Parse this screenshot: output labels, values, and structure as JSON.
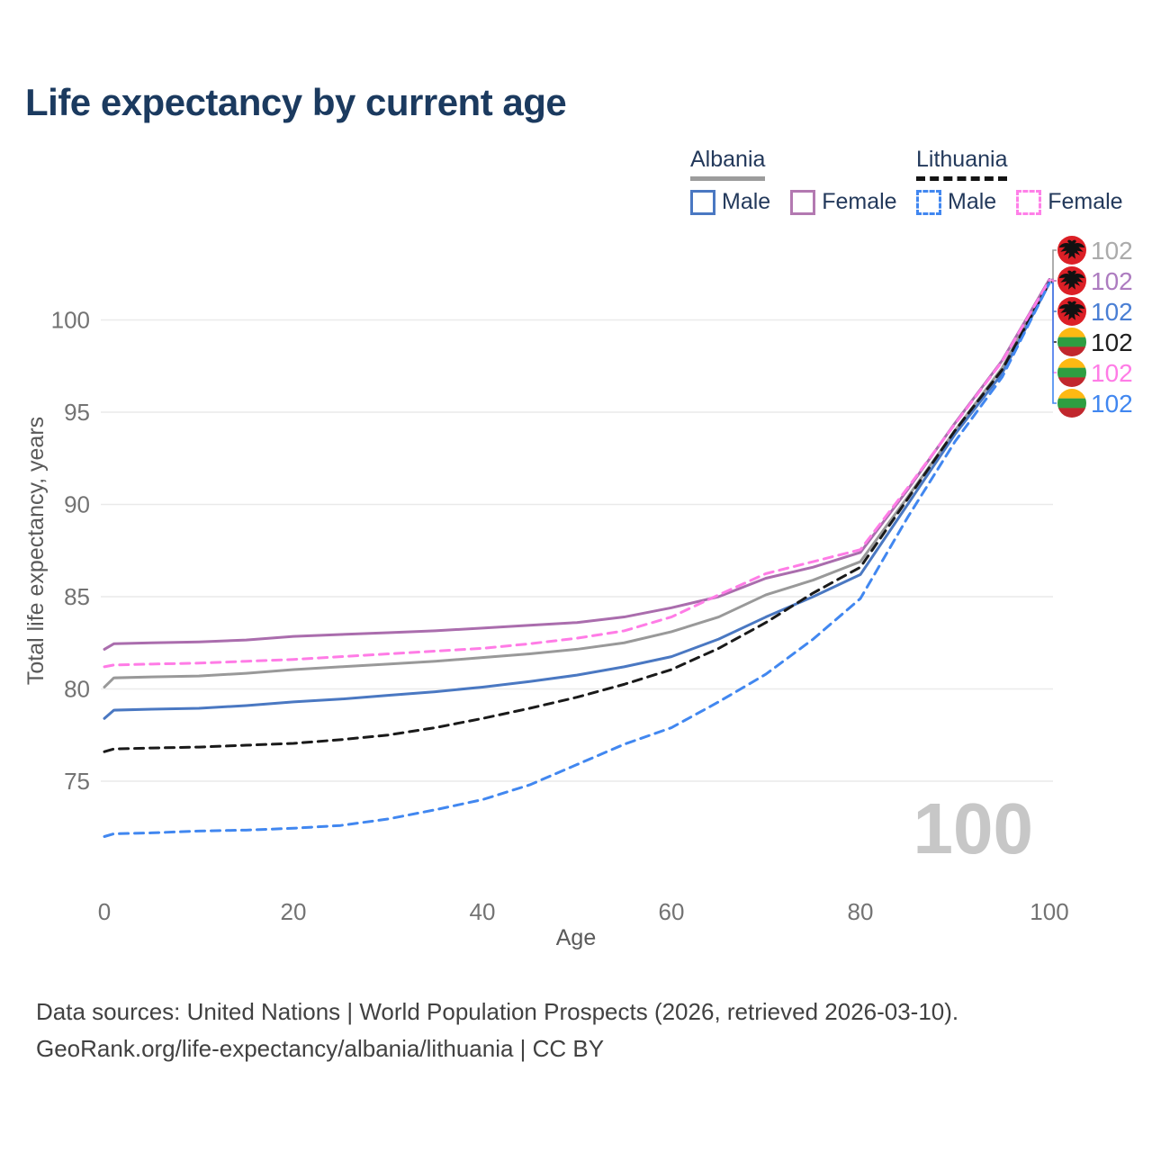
{
  "title": "Life expectancy by current age",
  "legend": {
    "groups": [
      {
        "label": "Albania",
        "underline_color": "#9c9c9c",
        "underline_dashed": false,
        "items": [
          {
            "label": "Male",
            "color": "#4a78c2",
            "dashed": false
          },
          {
            "label": "Female",
            "color": "#b379b1",
            "dashed": false
          }
        ]
      },
      {
        "label": "Lithuania",
        "underline_color": "#141414",
        "underline_dashed": true,
        "items": [
          {
            "label": "Male",
            "color": "#4187f0",
            "dashed": true
          },
          {
            "label": "Female",
            "color": "#ff80e8",
            "dashed": true
          }
        ]
      }
    ]
  },
  "watermark": "100",
  "footer": {
    "line1": "Data sources: United Nations | World Population Prospects (2026, retrieved 2026-03-10).",
    "line2": "GeoRank.org/life-expectancy/albania/lithuania | CC BY"
  },
  "chart_data": {
    "type": "line",
    "title": "Life expectancy by current age",
    "xlabel": "Age",
    "ylabel": "Total life expectancy, years",
    "x_ticks": [
      0,
      20,
      40,
      60,
      80,
      100
    ],
    "y_ticks": [
      75,
      80,
      85,
      90,
      95,
      100
    ],
    "xlim": [
      0,
      100
    ],
    "ylim": [
      72,
      103
    ],
    "grid": "horizontal",
    "legend_position": "top-right",
    "current_age_watermark": "100",
    "x": [
      0,
      1,
      5,
      10,
      15,
      20,
      25,
      30,
      35,
      40,
      45,
      50,
      55,
      60,
      65,
      70,
      75,
      80,
      85,
      90,
      95,
      100
    ],
    "series": [
      {
        "name": "Albania",
        "group": "total",
        "color": "#999999",
        "label_color": "#ababab",
        "dashed": false,
        "flag": "albania",
        "end_label": "102",
        "values": [
          80.1,
          80.6,
          80.65,
          80.7,
          80.85,
          81.05,
          81.2,
          81.35,
          81.5,
          81.7,
          81.9,
          82.15,
          82.5,
          83.1,
          83.9,
          85.1,
          85.9,
          86.9,
          90.4,
          94.0,
          97.4,
          102.1
        ]
      },
      {
        "name": "Albania Female",
        "group": "female",
        "color": "#aa6dad",
        "label_color": "#ad7cc0",
        "dashed": false,
        "flag": "albania",
        "end_label": "102",
        "values": [
          82.15,
          82.45,
          82.5,
          82.55,
          82.65,
          82.85,
          82.95,
          83.05,
          83.15,
          83.3,
          83.45,
          83.6,
          83.9,
          84.4,
          85.0,
          86.0,
          86.6,
          87.4,
          90.8,
          94.4,
          97.8,
          102.2
        ]
      },
      {
        "name": "Albania Male",
        "group": "male",
        "color": "#4a78c2",
        "label_color": "#4a7fd4",
        "dashed": false,
        "flag": "albania",
        "end_label": "102",
        "values": [
          78.4,
          78.85,
          78.9,
          78.95,
          79.1,
          79.3,
          79.45,
          79.65,
          79.85,
          80.1,
          80.4,
          80.75,
          81.2,
          81.75,
          82.7,
          83.9,
          85.0,
          86.2,
          90.0,
          93.8,
          97.1,
          102.0
        ]
      },
      {
        "name": "Lithuania",
        "group": "total",
        "color": "#1a1a1a",
        "label_color": "#1f1f1f",
        "dashed": true,
        "flag": "lithuania",
        "end_label": "102",
        "values": [
          76.6,
          76.75,
          76.8,
          76.85,
          76.95,
          77.05,
          77.25,
          77.5,
          77.9,
          78.4,
          78.95,
          79.55,
          80.25,
          81.05,
          82.2,
          83.6,
          85.2,
          86.6,
          90.3,
          94.0,
          97.3,
          102.05
        ]
      },
      {
        "name": "Lithuania Female",
        "group": "female",
        "color": "#ff7ce6",
        "label_color": "#ff7ce6",
        "dashed": true,
        "flag": "lithuania",
        "end_label": "102",
        "values": [
          81.2,
          81.3,
          81.35,
          81.4,
          81.5,
          81.6,
          81.75,
          81.9,
          82.05,
          82.2,
          82.45,
          82.75,
          83.15,
          83.9,
          85.1,
          86.25,
          86.9,
          87.55,
          90.9,
          94.35,
          97.75,
          102.15
        ]
      },
      {
        "name": "Lithuania Male",
        "group": "male",
        "color": "#4187f0",
        "label_color": "#4187f0",
        "dashed": true,
        "flag": "lithuania",
        "end_label": "102",
        "values": [
          72.0,
          72.15,
          72.2,
          72.3,
          72.35,
          72.45,
          72.6,
          72.95,
          73.45,
          74.0,
          74.8,
          75.9,
          77.0,
          77.9,
          79.3,
          80.8,
          82.7,
          84.9,
          89.3,
          93.4,
          96.9,
          102.0
        ]
      }
    ]
  }
}
